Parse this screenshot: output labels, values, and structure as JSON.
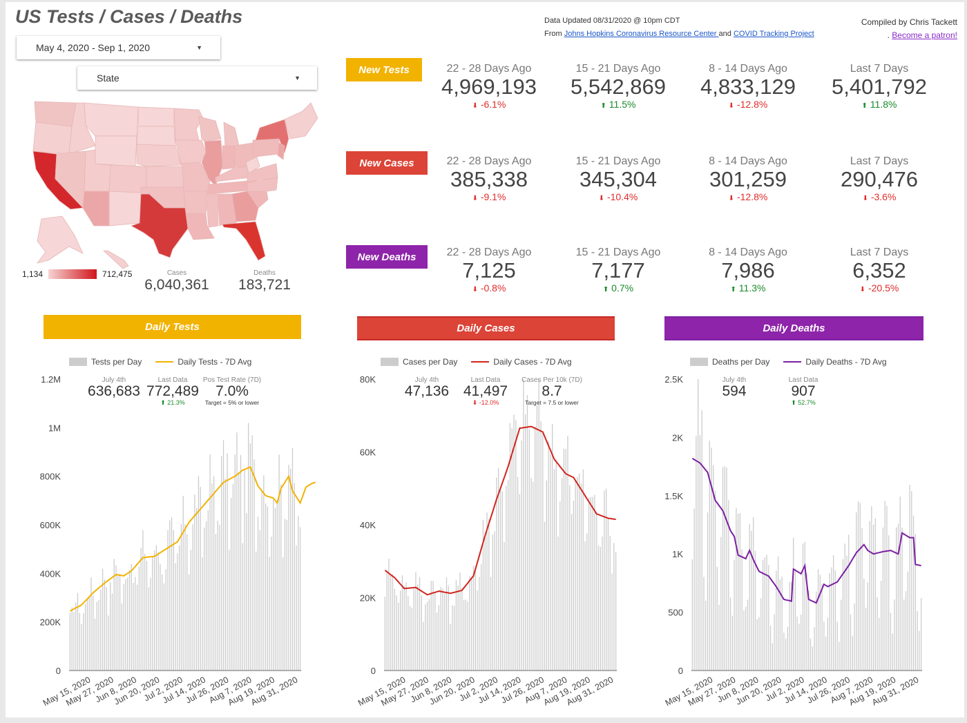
{
  "header": {
    "title": "US Tests / Cases / Deaths",
    "date_range": "May 4, 2020 - Sep 1, 2020",
    "state_placeholder": "State",
    "updated_line": "Data Updated 08/31/2020 @ 10pm CDT",
    "from_prefix": "From ",
    "source1": "Johns Hopkins Coronavirus Resource Center ",
    "and": " and ",
    "source2": "COVID Tracking Project",
    "compiled": "Compiled by Chris Tackett",
    "patron_prefix": ". ",
    "patron_link": "Become a patron!"
  },
  "map": {
    "legend_min": "1,134",
    "legend_max": "712,475",
    "cases_label": "Cases",
    "cases_value": "6,040,361",
    "deaths_label": "Deaths",
    "deaths_value": "183,721"
  },
  "colors": {
    "tests": "#f2b200",
    "cases": "#db4437",
    "deaths": "#8e24aa",
    "cases_line": "#d0251e",
    "deaths_line": "#7b1fa2",
    "up": "#1a8a2a",
    "down": "#e02b2b",
    "bar": "#cccccc"
  },
  "periods": [
    "22 - 28 Days Ago",
    "15 - 21 Days Ago",
    "8 - 14 Days Ago",
    "Last 7 Days"
  ],
  "rows": [
    {
      "label": "New Tests",
      "values": [
        "4,969,193",
        "5,542,869",
        "4,833,129",
        "5,401,792"
      ],
      "changes": [
        "-6.1%",
        "11.5%",
        "-12.8%",
        "11.8%"
      ],
      "dirs": [
        "down",
        "up",
        "down",
        "up"
      ]
    },
    {
      "label": "New Cases",
      "values": [
        "385,338",
        "345,304",
        "301,259",
        "290,476"
      ],
      "changes": [
        "-9.1%",
        "-10.4%",
        "-12.8%",
        "-3.6%"
      ],
      "dirs": [
        "down",
        "down",
        "down",
        "down"
      ]
    },
    {
      "label": "New Deaths",
      "values": [
        "7,125",
        "7,177",
        "7,986",
        "6,352"
      ],
      "changes": [
        "-0.8%",
        "0.7%",
        "11.3%",
        "-20.5%"
      ],
      "dirs": [
        "down",
        "up",
        "up",
        "down"
      ]
    }
  ],
  "sections": [
    "Daily Tests",
    "Daily Cases",
    "Daily Deaths"
  ],
  "chart_kpis": [
    {
      "july_label": "July 4th",
      "july_value": "636,683",
      "last_label": "Last Data",
      "last_value": "772,489",
      "last_change": "21.3%",
      "last_dir": "up",
      "extra_label": "Pos Test Rate (7D)",
      "extra_value": "7.0%",
      "extra_target": "Target = 5% or lower"
    },
    {
      "july_label": "July 4th",
      "july_value": "47,136",
      "last_label": "Last Data",
      "last_value": "41,497",
      "last_change": "-12.0%",
      "last_dir": "down",
      "extra_label": "Cases Per 10k (7D)",
      "extra_value": "8.7",
      "extra_target": "Target = 7.5 or lower"
    },
    {
      "july_label": "July 4th",
      "july_value": "594",
      "last_label": "Last Data",
      "last_value": "907",
      "last_change": "52.7%",
      "last_dir": "up"
    }
  ],
  "chart_data": [
    {
      "type": "bar",
      "title": "Daily Tests",
      "legend": [
        "Tests per Day",
        "Daily Tests - 7D Avg"
      ],
      "legend_placement": "top",
      "ylim": [
        0,
        1200000
      ],
      "yticks": [
        0,
        200000,
        400000,
        600000,
        800000,
        1000000,
        1200000
      ],
      "ytick_labels": [
        "0",
        "200K",
        "400K",
        "600K",
        "800K",
        "1M",
        "1.2M"
      ],
      "xtick_labels": [
        "May 15, 2020",
        "May 27, 2020",
        "Jun 8, 2020",
        "Jun 20, 2020",
        "Jul 2, 2020",
        "Jul 14, 2020",
        "Jul 26, 2020",
        "Aug 7, 2020",
        "Aug 19, 2020",
        "Aug 31, 2020"
      ],
      "x_start": "May 4, 2020",
      "x_end": "Aug 31, 2020",
      "avg_points": [
        [
          0,
          245000
        ],
        [
          6,
          270000
        ],
        [
          12,
          320000
        ],
        [
          18,
          360000
        ],
        [
          24,
          395000
        ],
        [
          28,
          390000
        ],
        [
          32,
          410000
        ],
        [
          38,
          465000
        ],
        [
          44,
          470000
        ],
        [
          50,
          500000
        ],
        [
          56,
          530000
        ],
        [
          62,
          610000
        ],
        [
          68,
          665000
        ],
        [
          74,
          720000
        ],
        [
          80,
          775000
        ],
        [
          86,
          800000
        ],
        [
          90,
          825000
        ],
        [
          94,
          838000
        ],
        [
          98,
          760000
        ],
        [
          102,
          720000
        ],
        [
          106,
          710000
        ],
        [
          108,
          690000
        ],
        [
          110,
          750000
        ],
        [
          114,
          800000
        ],
        [
          116,
          740000
        ],
        [
          120,
          690000
        ],
        [
          123,
          755000
        ],
        [
          126,
          770000
        ],
        [
          128,
          775000
        ]
      ],
      "bar_scale": 1.0
    },
    {
      "type": "bar",
      "title": "Daily Cases",
      "legend": [
        "Cases per Day",
        "Daily Cases - 7D Avg"
      ],
      "legend_placement": "top",
      "ylim": [
        0,
        80000
      ],
      "yticks": [
        0,
        20000,
        40000,
        60000,
        80000
      ],
      "ytick_labels": [
        "0",
        "20K",
        "40K",
        "60K",
        "80K"
      ],
      "xtick_labels": [
        "May 15, 2020",
        "May 27, 2020",
        "Jun 8, 2020",
        "Jun 20, 2020",
        "Jul 2, 2020",
        "Jul 14, 2020",
        "Jul 26, 2020",
        "Aug 7, 2020",
        "Aug 19, 2020",
        "Aug 31, 2020"
      ],
      "x_start": "May 4, 2020",
      "x_end": "Aug 31, 2020",
      "avg_points": [
        [
          0,
          27500
        ],
        [
          5,
          25500
        ],
        [
          10,
          22500
        ],
        [
          16,
          22800
        ],
        [
          22,
          20800
        ],
        [
          28,
          21800
        ],
        [
          34,
          21200
        ],
        [
          40,
          22000
        ],
        [
          46,
          26000
        ],
        [
          52,
          37000
        ],
        [
          58,
          47000
        ],
        [
          64,
          56000
        ],
        [
          70,
          66500
        ],
        [
          76,
          67000
        ],
        [
          82,
          65500
        ],
        [
          88,
          58000
        ],
        [
          94,
          54000
        ],
        [
          98,
          53000
        ],
        [
          104,
          48000
        ],
        [
          110,
          43000
        ],
        [
          116,
          41800
        ],
        [
          120,
          41500
        ]
      ],
      "bar_scale": 1.0
    },
    {
      "type": "bar",
      "title": "Daily Deaths",
      "legend": [
        "Deaths per Day",
        "Daily Deaths - 7D Avg"
      ],
      "legend_placement": "top",
      "ylim": [
        0,
        2500
      ],
      "yticks": [
        0,
        500,
        1000,
        1500,
        2000,
        2500
      ],
      "ytick_labels": [
        "0",
        "500",
        "1K",
        "1.5K",
        "2K",
        "2.5K"
      ],
      "xtick_labels": [
        "May 15, 2020",
        "May 27, 2020",
        "Jun 8, 2020",
        "Jun 20, 2020",
        "Jul 2, 2020",
        "Jul 14, 2020",
        "Jul 26, 2020",
        "Aug 7, 2020",
        "Aug 19, 2020",
        "Aug 31, 2020"
      ],
      "x_start": "May 4, 2020",
      "x_end": "Aug 31, 2020",
      "avg_points": [
        [
          0,
          1820
        ],
        [
          4,
          1780
        ],
        [
          8,
          1700
        ],
        [
          12,
          1460
        ],
        [
          16,
          1370
        ],
        [
          20,
          1200
        ],
        [
          22,
          1150
        ],
        [
          24,
          990
        ],
        [
          28,
          960
        ],
        [
          30,
          1030
        ],
        [
          32,
          950
        ],
        [
          35,
          850
        ],
        [
          40,
          810
        ],
        [
          44,
          720
        ],
        [
          48,
          610
        ],
        [
          52,
          595
        ],
        [
          53,
          870
        ],
        [
          57,
          830
        ],
        [
          59,
          900
        ],
        [
          61,
          610
        ],
        [
          65,
          580
        ],
        [
          69,
          740
        ],
        [
          71,
          720
        ],
        [
          76,
          760
        ],
        [
          82,
          900
        ],
        [
          86,
          1010
        ],
        [
          90,
          1080
        ],
        [
          92,
          1030
        ],
        [
          95,
          1000
        ],
        [
          100,
          1020
        ],
        [
          104,
          1030
        ],
        [
          108,
          1000
        ],
        [
          110,
          1180
        ],
        [
          114,
          1140
        ],
        [
          116,
          1140
        ],
        [
          117,
          910
        ],
        [
          120,
          900
        ]
      ],
      "bar_scale": 1.0
    }
  ]
}
